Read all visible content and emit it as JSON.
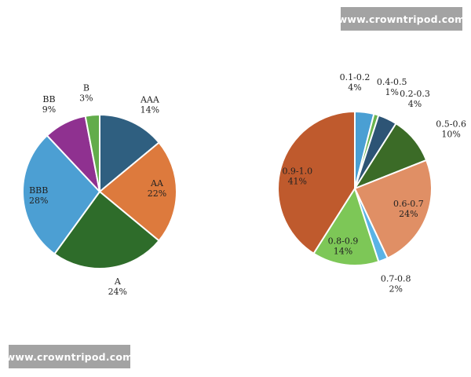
{
  "watermarks": {
    "top": "www.crowntripod.com",
    "bottom": "www.crowntripod.com"
  },
  "chart_data": [
    {
      "type": "pie",
      "title": "",
      "categories": [
        "AAA",
        "AA",
        "A",
        "BBB",
        "BB",
        "B"
      ],
      "values": [
        14,
        22,
        24,
        28,
        9,
        3
      ],
      "value_labels": [
        "14%",
        "22%",
        "24%",
        "28%",
        "9%",
        "3%"
      ],
      "colors": [
        "#2f5f80",
        "#dd7a3d",
        "#2e6c2a",
        "#4c9fd3",
        "#8f3190",
        "#62ac4b"
      ],
      "start_angle_deg": 0,
      "direction": "clockwise",
      "legend": "none"
    },
    {
      "type": "pie",
      "title": "",
      "categories": [
        "0.1-0.2",
        "0.4-0.5",
        "0.2-0.3",
        "0.5-0.6",
        "0.6-0.7",
        "0.7-0.8",
        "0.8-0.9",
        "0.9-1.0"
      ],
      "values": [
        4,
        1,
        4,
        10,
        24,
        2,
        14,
        41
      ],
      "value_labels": [
        "4%",
        "1%",
        "4%",
        "10%",
        "24%",
        "2%",
        "14%",
        "41%"
      ],
      "colors": [
        "#4a9fd3",
        "#6ab34f",
        "#2d5475",
        "#3b6b27",
        "#e08f65",
        "#5ab3e6",
        "#7dc757",
        "#bf5a2d"
      ],
      "start_angle_deg": 0,
      "direction": "clockwise",
      "legend": "none"
    }
  ]
}
